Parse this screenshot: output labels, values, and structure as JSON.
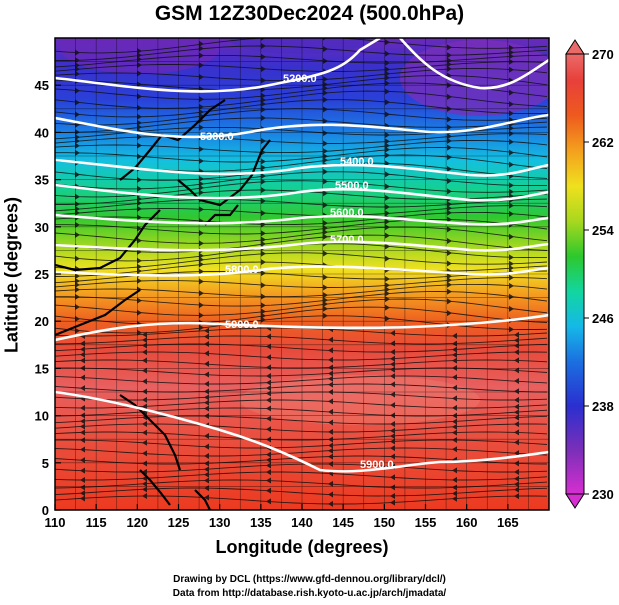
{
  "title": "GSM 12Z30Dec2024 (500.0hPa)",
  "xlabel": "Longitude (degrees)",
  "ylabel": "Latitude  (degrees)",
  "xticks": [
    "110",
    "115",
    "120",
    "125",
    "130",
    "135",
    "140",
    "145",
    "150",
    "155",
    "160",
    "165"
  ],
  "yticks": [
    "0",
    "5",
    "10",
    "15",
    "20",
    "25",
    "30",
    "35",
    "40",
    "45"
  ],
  "colorbar": {
    "ticks": [
      "230",
      "238",
      "246",
      "254",
      "262",
      "270"
    ],
    "range": [
      230,
      270
    ],
    "colors": [
      "#d62fd0",
      "#7b2fb8",
      "#2a2fd0",
      "#1b6fe0",
      "#15b8e8",
      "#12d6a0",
      "#2dc82d",
      "#a8d81e",
      "#f0e01e",
      "#f4a01e",
      "#ee5a1e",
      "#e8403a",
      "#ea6a6a"
    ]
  },
  "contour_labels": [
    "5200.0",
    "5300.0",
    "5400.0",
    "5500.0",
    "5600.0",
    "5700.0",
    "5800.0",
    "5900.0",
    "5900.0"
  ],
  "credits": [
    "Drawing by DCL (https://www.gfd-dennou.org/library/dcl/)",
    "Data from http://database.rish.kyoto-u.ac.jp/arch/jmadata/"
  ]
}
